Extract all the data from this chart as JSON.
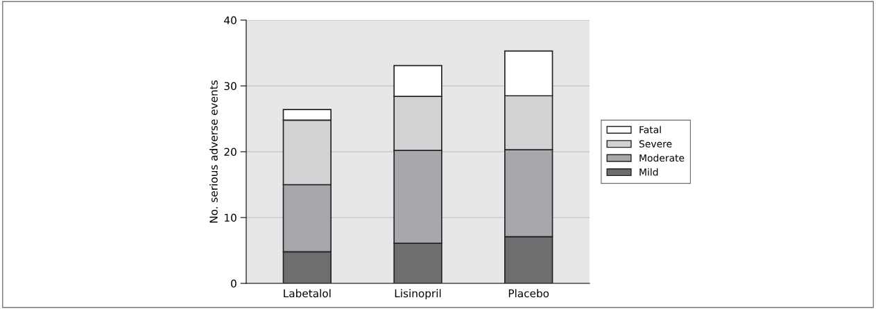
{
  "chart_data": {
    "type": "bar",
    "stacked": true,
    "ylabel": "No. serious adverse events",
    "categories": [
      "Labetalol",
      "Lisinopril",
      "Placebo"
    ],
    "series": [
      {
        "name": "Mild",
        "color": "#6d6e70",
        "values": [
          4.8,
          6.1,
          7.1
        ]
      },
      {
        "name": "Moderate",
        "color": "#a7a8ab",
        "values": [
          10.2,
          14.1,
          13.2
        ]
      },
      {
        "name": "Severe",
        "color": "#d1d2d4",
        "values": [
          9.8,
          8.2,
          8.2
        ]
      },
      {
        "name": "Fatal",
        "color": "#ffffff",
        "values": [
          1.6,
          4.7,
          6.8
        ]
      }
    ],
    "ylim": [
      0,
      40
    ],
    "yticks": [
      0,
      10,
      20,
      30,
      40
    ],
    "grid": "y",
    "legend": "right"
  }
}
